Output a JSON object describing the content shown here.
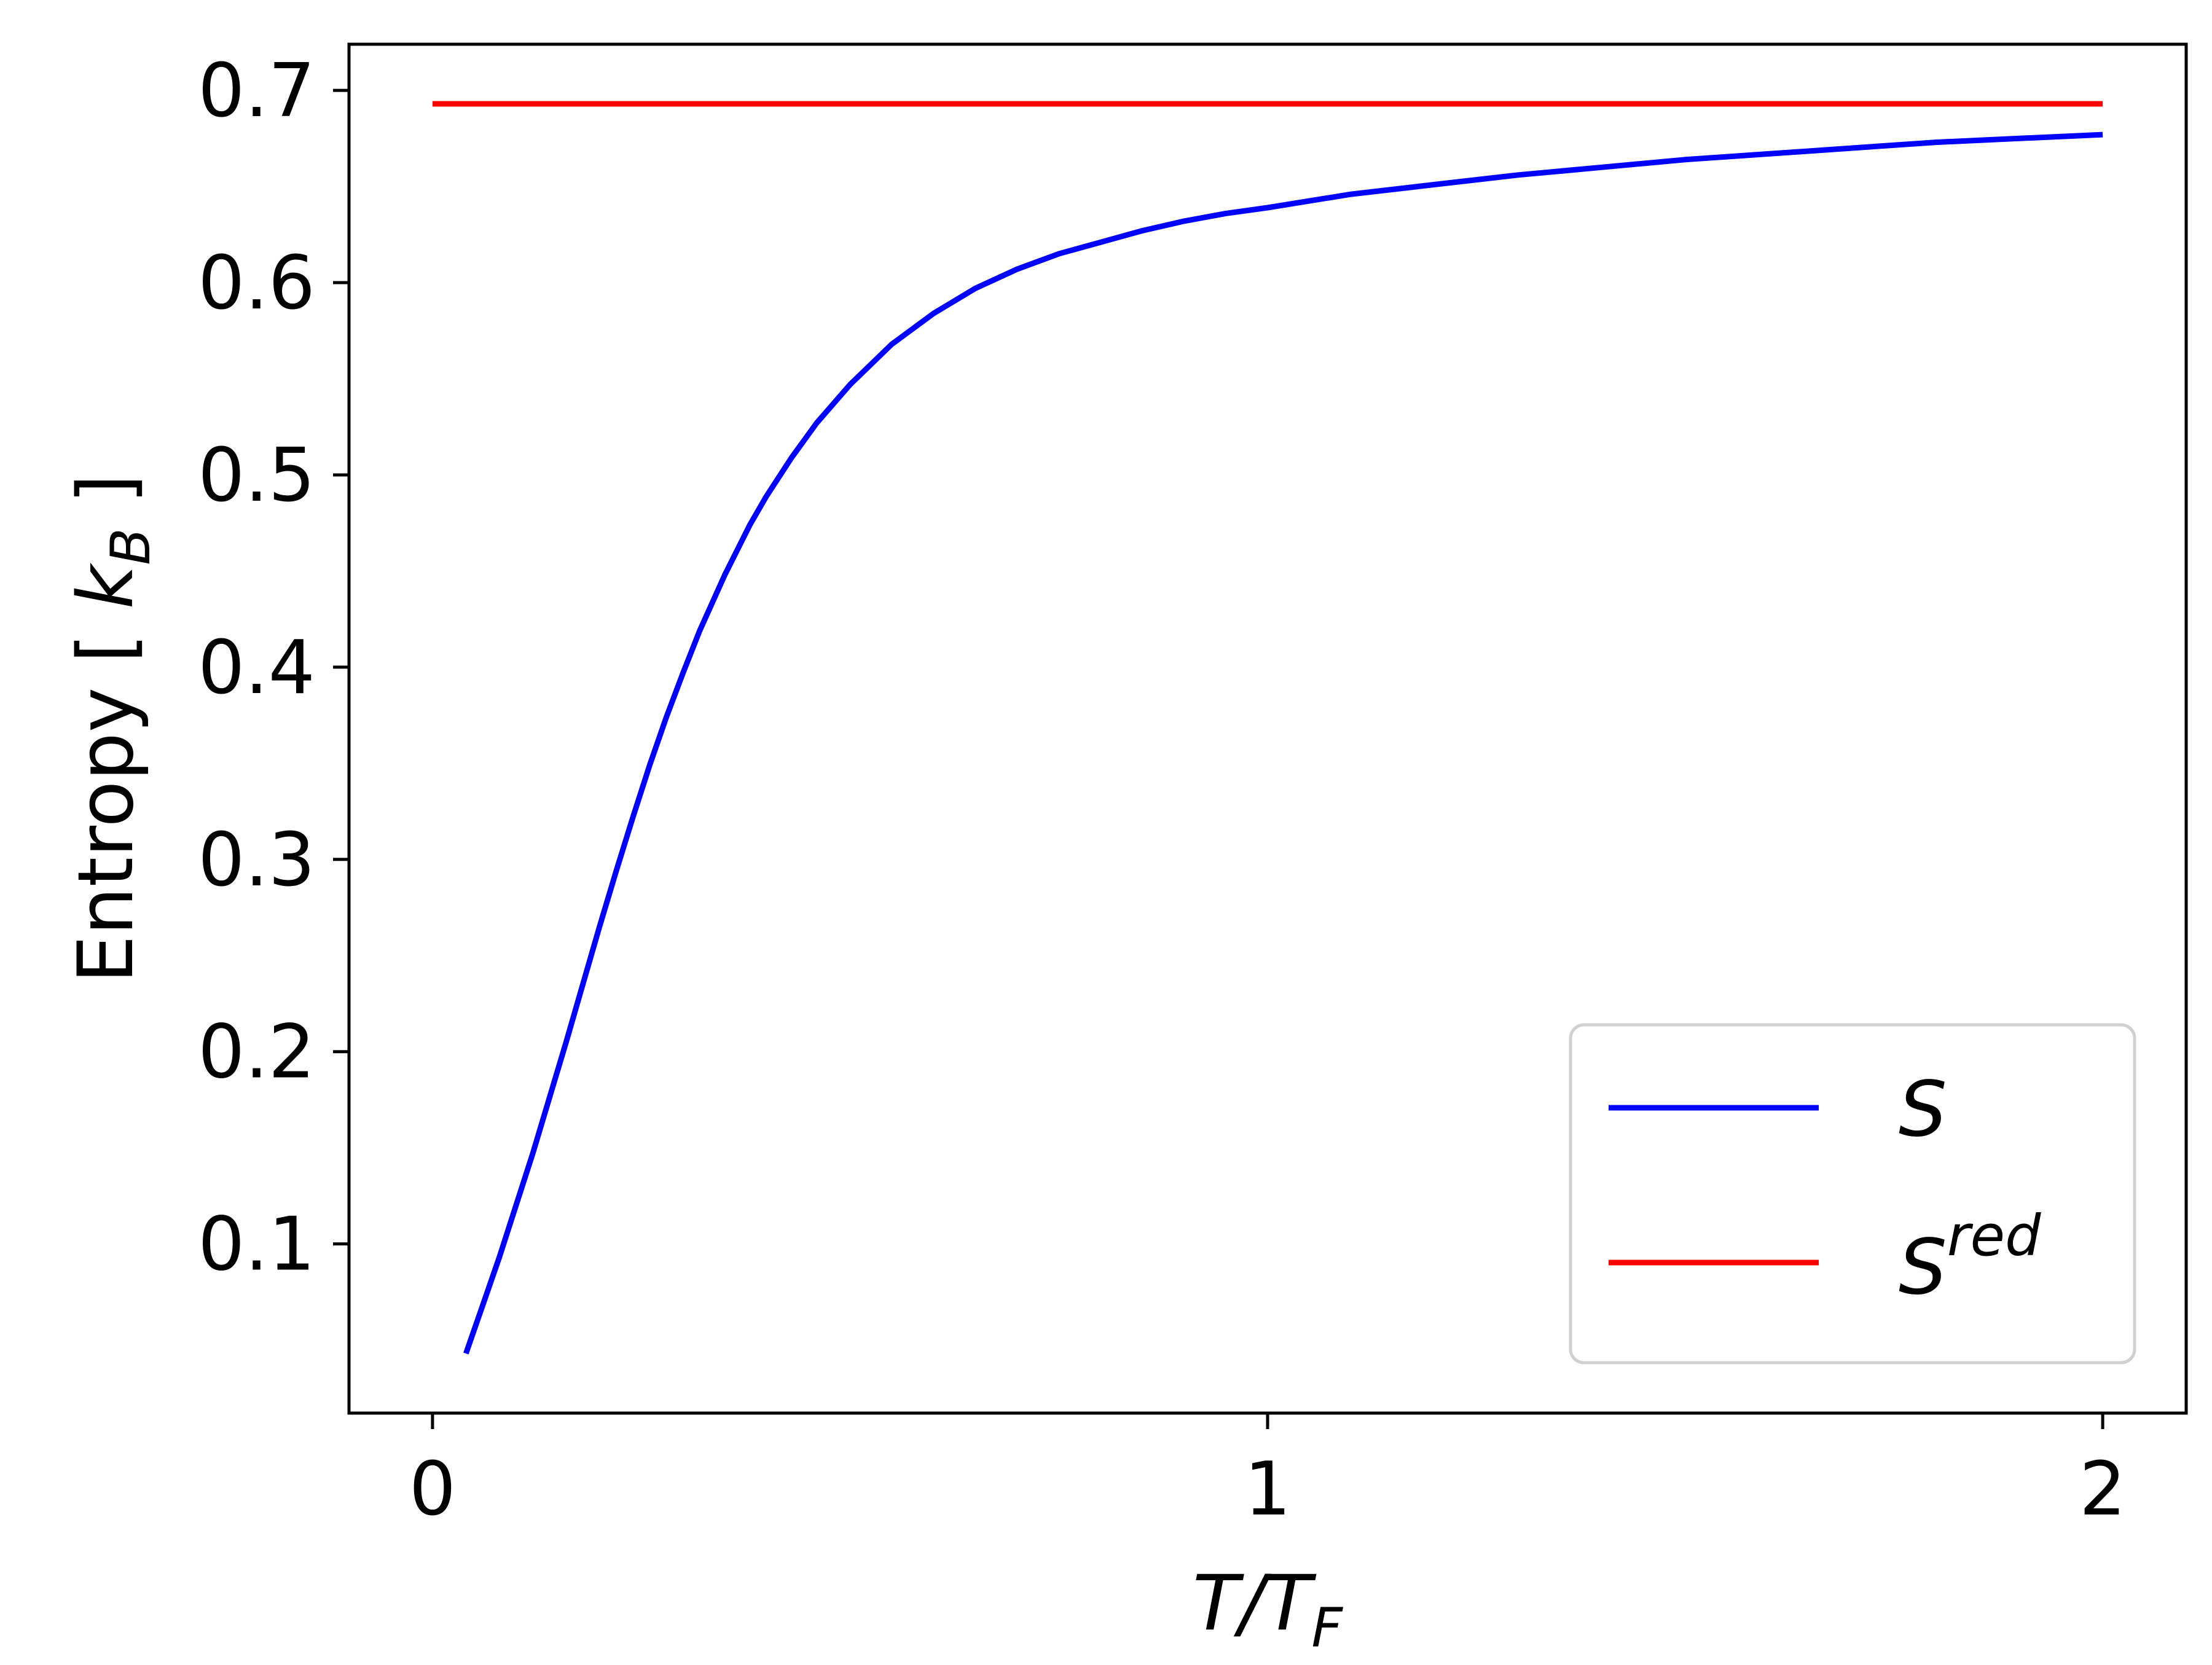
{
  "chart_data": {
    "type": "line",
    "xlabel": {
      "base": "T/T",
      "sub": "F"
    },
    "ylabel": {
      "base": "Entropy [ ",
      "k": "k",
      "sub": "B",
      "close": " ]"
    },
    "xlim": [
      -0.1,
      2.1
    ],
    "ylim": [
      0.012,
      0.724
    ],
    "xticks": [
      0,
      1,
      2
    ],
    "xtick_labels": [
      "0",
      "1",
      "2"
    ],
    "yticks": [
      0.1,
      0.2,
      0.3,
      0.4,
      0.5,
      0.6,
      0.7
    ],
    "ytick_labels": [
      "0.1",
      "0.2",
      "0.3",
      "0.4",
      "0.5",
      "0.6",
      "0.7"
    ],
    "grid": false,
    "legend_position": "lower-right",
    "series": [
      {
        "name": "S",
        "color": "#0000ff",
        "x": [
          0.04,
          0.06,
          0.08,
          0.1,
          0.12,
          0.14,
          0.16,
          0.18,
          0.2,
          0.22,
          0.24,
          0.26,
          0.28,
          0.3,
          0.32,
          0.35,
          0.38,
          0.4,
          0.43,
          0.46,
          0.5,
          0.55,
          0.6,
          0.65,
          0.7,
          0.75,
          0.8,
          0.85,
          0.9,
          0.95,
          1.0,
          1.1,
          1.2,
          1.3,
          1.4,
          1.5,
          1.6,
          1.7,
          1.8,
          1.9,
          2.0
        ],
        "y": [
          0.043,
          0.068,
          0.093,
          0.12,
          0.147,
          0.176,
          0.205,
          0.235,
          0.265,
          0.294,
          0.322,
          0.349,
          0.374,
          0.397,
          0.419,
          0.448,
          0.474,
          0.489,
          0.509,
          0.527,
          0.547,
          0.568,
          0.584,
          0.597,
          0.607,
          0.615,
          0.621,
          0.627,
          0.632,
          0.636,
          0.639,
          0.646,
          0.651,
          0.656,
          0.66,
          0.664,
          0.667,
          0.67,
          0.673,
          0.675,
          0.677
        ]
      },
      {
        "name": "S",
        "name_sup": "red",
        "color": "#ff0000",
        "x": [
          0.0,
          2.0
        ],
        "y": [
          0.693,
          0.693
        ]
      }
    ]
  }
}
